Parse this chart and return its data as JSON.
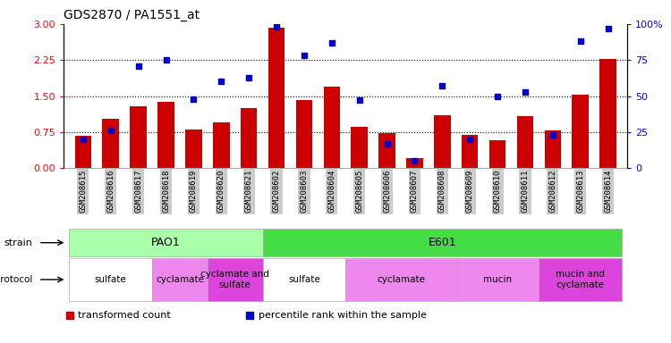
{
  "title": "GDS2870 / PA1551_at",
  "samples": [
    "GSM208615",
    "GSM208616",
    "GSM208617",
    "GSM208618",
    "GSM208619",
    "GSM208620",
    "GSM208621",
    "GSM208602",
    "GSM208603",
    "GSM208604",
    "GSM208605",
    "GSM208606",
    "GSM208607",
    "GSM208608",
    "GSM208609",
    "GSM208610",
    "GSM208611",
    "GSM208612",
    "GSM208613",
    "GSM208614"
  ],
  "transformed_count": [
    0.68,
    1.02,
    1.28,
    1.38,
    0.8,
    0.95,
    1.25,
    2.92,
    1.42,
    1.7,
    0.85,
    0.72,
    0.2,
    1.1,
    0.7,
    0.58,
    1.08,
    0.78,
    1.52,
    2.27
  ],
  "percentile_rank": [
    20,
    26,
    71,
    75,
    48,
    60,
    63,
    98,
    78,
    87,
    47,
    17,
    5,
    57,
    20,
    50,
    53,
    23,
    88,
    97
  ],
  "ylim_left": [
    0,
    3
  ],
  "ylim_right": [
    0,
    100
  ],
  "yticks_left": [
    0,
    0.75,
    1.5,
    2.25,
    3
  ],
  "yticks_right": [
    0,
    25,
    50,
    75,
    100
  ],
  "bar_color": "#cc0000",
  "dot_color": "#0000cc",
  "bg_color": "#ffffff",
  "strain_row": [
    {
      "label": "PAO1",
      "start": 0,
      "end": 7,
      "color": "#aaffaa"
    },
    {
      "label": "E601",
      "start": 7,
      "end": 20,
      "color": "#44dd44"
    }
  ],
  "protocol_row": [
    {
      "label": "sulfate",
      "start": 0,
      "end": 3,
      "color": "#ffffff"
    },
    {
      "label": "cyclamate",
      "start": 3,
      "end": 5,
      "color": "#ee88ee"
    },
    {
      "label": "cyclamate and\nsulfate",
      "start": 5,
      "end": 7,
      "color": "#dd44dd"
    },
    {
      "label": "sulfate",
      "start": 7,
      "end": 10,
      "color": "#ffffff"
    },
    {
      "label": "cyclamate",
      "start": 10,
      "end": 14,
      "color": "#ee88ee"
    },
    {
      "label": "mucin",
      "start": 14,
      "end": 17,
      "color": "#ee88ee"
    },
    {
      "label": "mucin and\ncyclamate",
      "start": 17,
      "end": 20,
      "color": "#dd44dd"
    }
  ],
  "legend_items": [
    {
      "label": "transformed count",
      "color": "#cc0000",
      "marker": "s"
    },
    {
      "label": "percentile rank within the sample",
      "color": "#0000cc",
      "marker": "s"
    }
  ],
  "tick_bg_color": "#cccccc",
  "dotted_line_ticks": [
    0.75,
    1.5,
    2.25
  ]
}
